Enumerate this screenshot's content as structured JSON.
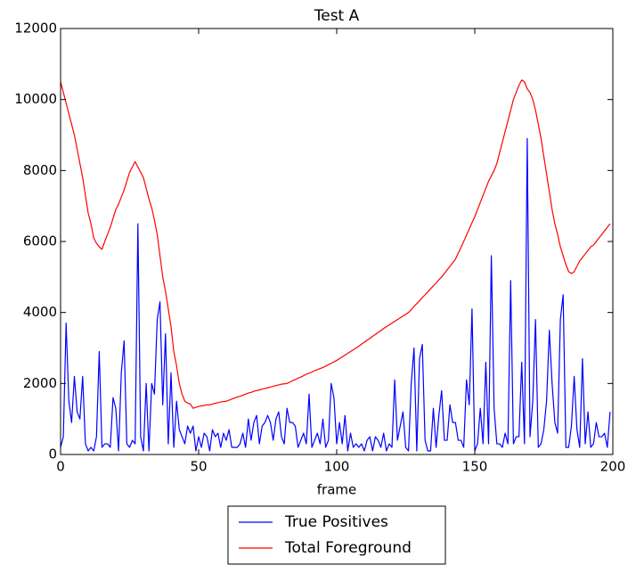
{
  "chart_data": {
    "type": "line",
    "title": "Test A",
    "x_label": "frame",
    "x": [
      0,
      1,
      2,
      3,
      4,
      5,
      6,
      7,
      8,
      9,
      10,
      11,
      12,
      13,
      14,
      15,
      16,
      17,
      18,
      19,
      20,
      21,
      22,
      23,
      24,
      25,
      26,
      27,
      28,
      29,
      30,
      31,
      32,
      33,
      34,
      35,
      36,
      37,
      38,
      39,
      40,
      41,
      42,
      43,
      44,
      45,
      46,
      47,
      48,
      49,
      50,
      51,
      52,
      53,
      54,
      55,
      56,
      57,
      58,
      59,
      60,
      61,
      62,
      63,
      64,
      65,
      66,
      67,
      68,
      69,
      70,
      71,
      72,
      73,
      74,
      75,
      76,
      77,
      78,
      79,
      80,
      81,
      82,
      83,
      84,
      85,
      86,
      87,
      88,
      89,
      90,
      91,
      92,
      93,
      94,
      95,
      96,
      97,
      98,
      99,
      100,
      101,
      102,
      103,
      104,
      105,
      106,
      107,
      108,
      109,
      110,
      111,
      112,
      113,
      114,
      115,
      116,
      117,
      118,
      119,
      120,
      121,
      122,
      123,
      124,
      125,
      126,
      127,
      128,
      129,
      130,
      131,
      132,
      133,
      134,
      135,
      136,
      137,
      138,
      139,
      140,
      141,
      142,
      143,
      144,
      145,
      146,
      147,
      148,
      149,
      150,
      151,
      152,
      153,
      154,
      155,
      156,
      157,
      158,
      159,
      160,
      161,
      162,
      163,
      164,
      165,
      166,
      167,
      168,
      169,
      170,
      171,
      172,
      173,
      174,
      175,
      176,
      177,
      178,
      179,
      180,
      181,
      182,
      183,
      184,
      185,
      186,
      187,
      188,
      189,
      190,
      191,
      192,
      193,
      194,
      195,
      196,
      197,
      198,
      199
    ],
    "series": [
      {
        "name": "True Positives",
        "color": "#0000ff",
        "values": [
          200,
          500,
          3700,
          1500,
          900,
          2200,
          1200,
          1000,
          2200,
          300,
          100,
          200,
          100,
          500,
          2900,
          200,
          300,
          300,
          200,
          1600,
          1300,
          100,
          2300,
          3200,
          300,
          200,
          400,
          300,
          6500,
          500,
          100,
          2000,
          100,
          2000,
          1700,
          3800,
          4300,
          1400,
          3400,
          300,
          2300,
          200,
          1500,
          700,
          500,
          300,
          800,
          600,
          800,
          100,
          500,
          200,
          600,
          500,
          100,
          700,
          500,
          600,
          200,
          600,
          400,
          700,
          200,
          200,
          200,
          300,
          600,
          200,
          1000,
          400,
          900,
          1100,
          300,
          800,
          900,
          1100,
          900,
          400,
          1000,
          1200,
          500,
          300,
          1300,
          900,
          900,
          800,
          200,
          400,
          600,
          300,
          1700,
          200,
          400,
          600,
          300,
          1000,
          200,
          400,
          2000,
          1600,
          300,
          900,
          300,
          1100,
          100,
          600,
          200,
          300,
          200,
          300,
          100,
          400,
          500,
          100,
          500,
          400,
          200,
          600,
          100,
          300,
          200,
          2100,
          400,
          800,
          1200,
          200,
          100,
          2000,
          3000,
          100,
          2700,
          3100,
          400,
          100,
          100,
          1300,
          200,
          1100,
          1800,
          400,
          400,
          1400,
          900,
          900,
          400,
          400,
          200,
          2100,
          1400,
          4100,
          100,
          300,
          1300,
          300,
          2600,
          300,
          5600,
          1300,
          300,
          300,
          200,
          600,
          300,
          4900,
          300,
          500,
          500,
          2600,
          300,
          8900,
          500,
          1500,
          3800,
          200,
          300,
          700,
          1500,
          3500,
          2000,
          900,
          600,
          3800,
          4500,
          200,
          200,
          800,
          2200,
          700,
          200,
          2700,
          300,
          1200,
          200,
          300,
          900,
          500,
          500,
          600,
          200,
          1200
        ]
      },
      {
        "name": "Total Foreground",
        "color": "#ff0000",
        "values": [
          10500,
          10200,
          9900,
          9600,
          9300,
          9000,
          8600,
          8200,
          7800,
          7300,
          6800,
          6500,
          6100,
          5950,
          5850,
          5780,
          6000,
          6200,
          6400,
          6650,
          6900,
          7050,
          7250,
          7450,
          7700,
          7950,
          8100,
          8250,
          8100,
          7950,
          7800,
          7500,
          7200,
          6950,
          6600,
          6200,
          5600,
          5000,
          4600,
          4100,
          3600,
          2900,
          2500,
          2000,
          1700,
          1500,
          1450,
          1420,
          1300,
          1330,
          1350,
          1370,
          1380,
          1400,
          1400,
          1420,
          1440,
          1460,
          1480,
          1490,
          1500,
          1530,
          1560,
          1590,
          1620,
          1640,
          1670,
          1700,
          1730,
          1750,
          1780,
          1800,
          1820,
          1840,
          1860,
          1880,
          1900,
          1920,
          1940,
          1960,
          1980,
          1990,
          2000,
          2040,
          2080,
          2110,
          2150,
          2180,
          2220,
          2260,
          2290,
          2320,
          2360,
          2390,
          2420,
          2450,
          2490,
          2530,
          2570,
          2610,
          2650,
          2700,
          2750,
          2800,
          2850,
          2900,
          2950,
          3000,
          3050,
          3110,
          3160,
          3220,
          3270,
          3330,
          3380,
          3440,
          3490,
          3550,
          3600,
          3650,
          3700,
          3750,
          3800,
          3850,
          3900,
          3950,
          4000,
          4080,
          4170,
          4250,
          4330,
          4420,
          4500,
          4580,
          4670,
          4750,
          4830,
          4920,
          5000,
          5100,
          5200,
          5300,
          5400,
          5500,
          5670,
          5830,
          6000,
          6180,
          6350,
          6530,
          6700,
          6900,
          7100,
          7300,
          7500,
          7700,
          7850,
          8000,
          8200,
          8500,
          8800,
          9100,
          9400,
          9700,
          10000,
          10200,
          10400,
          10550,
          10500,
          10300,
          10200,
          10000,
          9700,
          9300,
          8900,
          8400,
          7900,
          7400,
          6900,
          6500,
          6200,
          5850,
          5600,
          5350,
          5150,
          5100,
          5150,
          5300,
          5450,
          5550,
          5650,
          5750,
          5850,
          5900,
          6000,
          6100,
          6200,
          6300,
          6400,
          6500
        ]
      }
    ],
    "xlim": [
      0,
      200
    ],
    "xticks": [
      0,
      50,
      100,
      150,
      200
    ],
    "ylim": [
      0,
      12000
    ],
    "yticks": [
      0,
      2000,
      4000,
      6000,
      8000,
      10000,
      12000
    ],
    "grid": false,
    "legend": "below"
  }
}
